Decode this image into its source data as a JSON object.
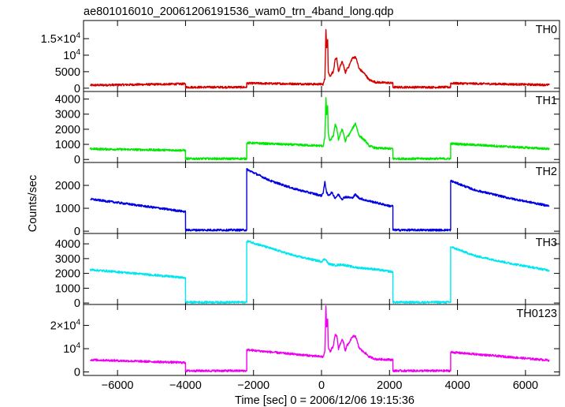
{
  "title": "ae801016010_20061206191536_wam0_trn_4band_long.qdp",
  "xlabel": "Time [sec] 0 = 2006/12/06 19:15:36",
  "ylabel": "Counts/sec",
  "chart_data": {
    "type": "line",
    "shared_x_axis": true,
    "xlim": [
      -7000,
      7000
    ],
    "x_ticks": [
      -6000,
      -4000,
      -2000,
      0,
      2000,
      4000,
      6000
    ],
    "x_tick_labels": [
      "−6000",
      "−4000",
      "−2000",
      "0",
      "2000",
      "4000",
      "6000"
    ],
    "panels": [
      {
        "name": "TH0",
        "color": "#d40000",
        "ylim": [
          -1000,
          20500
        ],
        "y_ticks": [
          0,
          5000,
          10000,
          15000
        ],
        "y_tick_labels": [
          {
            "mant": "0"
          },
          {
            "mant": "5000"
          },
          {
            "mant": "10",
            "exp": "4"
          },
          {
            "mant": "1.5×10",
            "exp": "4"
          }
        ],
        "x": [
          -6800,
          -4000,
          -3999,
          -2200,
          -2199,
          50,
          100,
          130,
          150,
          180,
          200,
          250,
          300,
          350,
          400,
          450,
          500,
          600,
          650,
          700,
          750,
          800,
          900,
          1000,
          1050,
          1100,
          1200,
          1300,
          1400,
          1600,
          2000,
          2100,
          2101,
          3799,
          3800,
          6700
        ],
        "values": [
          900,
          1300,
          300,
          300,
          1500,
          1200,
          3000,
          18000,
          12000,
          15000,
          5000,
          3500,
          4500,
          5000,
          8500,
          9000,
          5000,
          8000,
          7000,
          4500,
          6000,
          6500,
          9000,
          9500,
          8000,
          6000,
          5000,
          4000,
          2500,
          1800,
          1600,
          1500,
          300,
          300,
          1500,
          1000
        ]
      },
      {
        "name": "TH1",
        "color": "#00e800",
        "ylim": [
          -200,
          4500
        ],
        "y_ticks": [
          0,
          1000,
          2000,
          3000,
          4000
        ],
        "y_tick_labels": [
          {
            "mant": "0"
          },
          {
            "mant": "1000"
          },
          {
            "mant": "2000"
          },
          {
            "mant": "3000"
          },
          {
            "mant": "4000"
          }
        ],
        "x": [
          -6800,
          -4000,
          -3999,
          -2200,
          -2199,
          50,
          100,
          130,
          150,
          180,
          200,
          250,
          300,
          350,
          400,
          450,
          500,
          600,
          650,
          700,
          750,
          800,
          900,
          1000,
          1050,
          1100,
          1200,
          1300,
          1400,
          1600,
          2000,
          2100,
          2101,
          3799,
          3800,
          6700
        ],
        "values": [
          700,
          600,
          50,
          50,
          1100,
          900,
          1500,
          4100,
          3000,
          3500,
          1700,
          1200,
          1400,
          1600,
          2300,
          2100,
          1300,
          2000,
          1700,
          1200,
          1500,
          1600,
          2000,
          2400,
          2000,
          1600,
          1400,
          1200,
          900,
          750,
          720,
          700,
          50,
          50,
          1050,
          700
        ]
      },
      {
        "name": "TH2",
        "color": "#0000e0",
        "ylim": [
          -100,
          3000
        ],
        "y_ticks": [
          0,
          1000,
          2000
        ],
        "y_tick_labels": [
          {
            "mant": "0"
          },
          {
            "mant": "1000"
          },
          {
            "mant": "2000"
          }
        ],
        "x": [
          -6800,
          -6000,
          -5000,
          -4000,
          -3999,
          -2200,
          -2199,
          -1500,
          -800,
          0,
          50,
          100,
          150,
          200,
          300,
          400,
          500,
          600,
          700,
          900,
          1000,
          1100,
          1300,
          1600,
          2000,
          2100,
          2101,
          3799,
          3800,
          4500,
          5500,
          6700
        ],
        "values": [
          1400,
          1250,
          1050,
          850,
          50,
          50,
          2700,
          2200,
          1850,
          1550,
          1700,
          2150,
          1700,
          1550,
          1700,
          1450,
          1600,
          1400,
          1500,
          1450,
          1600,
          1450,
          1350,
          1250,
          1100,
          1100,
          50,
          50,
          2200,
          1800,
          1450,
          1100
        ]
      },
      {
        "name": "TH3",
        "color": "#00e6f0",
        "ylim": [
          -100,
          4700
        ],
        "y_ticks": [
          0,
          1000,
          2000,
          3000,
          4000
        ],
        "y_tick_labels": [
          {
            "mant": "0"
          },
          {
            "mant": "1000"
          },
          {
            "mant": "2000"
          },
          {
            "mant": "3000"
          },
          {
            "mant": "4000"
          }
        ],
        "x": [
          -6800,
          -6000,
          -5000,
          -4000,
          -3999,
          -2200,
          -2199,
          -1500,
          -800,
          0,
          100,
          150,
          200,
          400,
          600,
          1000,
          1500,
          2100,
          2101,
          3799,
          3800,
          4500,
          5500,
          6700
        ],
        "values": [
          2250,
          2100,
          1900,
          1700,
          50,
          50,
          4200,
          3700,
          3200,
          2800,
          3000,
          2850,
          2650,
          2550,
          2600,
          2400,
          2300,
          2100,
          50,
          50,
          3800,
          3200,
          2700,
          2200
        ]
      },
      {
        "name": "TH0123",
        "color": "#f000f0",
        "ylim": [
          -1500,
          29000
        ],
        "y_ticks": [
          0,
          10000,
          20000
        ],
        "y_tick_labels": [
          {
            "mant": "0"
          },
          {
            "mant": "10",
            "exp": "4"
          },
          {
            "mant": "2×10",
            "exp": "4"
          }
        ],
        "x": [
          -6800,
          -4000,
          -3999,
          -2200,
          -2199,
          50,
          100,
          130,
          150,
          180,
          200,
          250,
          300,
          350,
          400,
          450,
          500,
          600,
          650,
          700,
          750,
          800,
          900,
          1000,
          1050,
          1100,
          1200,
          1300,
          1400,
          1600,
          2000,
          2100,
          2101,
          3799,
          3800,
          6700
        ],
        "values": [
          5200,
          4000,
          500,
          500,
          9500,
          6500,
          9000,
          28500,
          19000,
          23000,
          11000,
          8500,
          10000,
          11000,
          16000,
          15500,
          10000,
          14000,
          12500,
          9000,
          11500,
          12000,
          15000,
          15500,
          13000,
          10500,
          9000,
          8000,
          6500,
          5500,
          5300,
          5200,
          500,
          500,
          8500,
          5000
        ]
      }
    ]
  }
}
